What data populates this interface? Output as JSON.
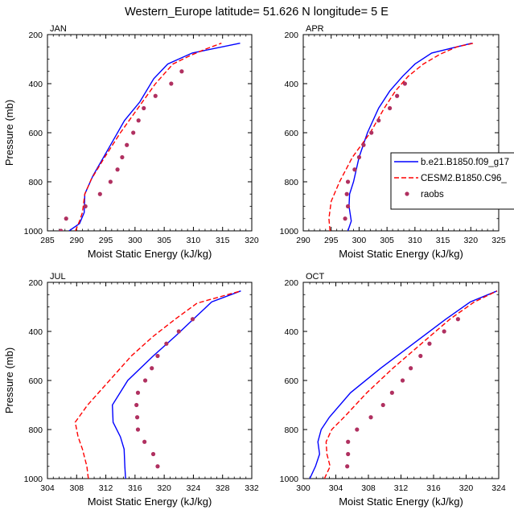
{
  "title": "Western_Europe  latitude= 51.626 N longitude= 5 E",
  "legend": {
    "position": "right, between top panels",
    "entries": [
      {
        "label": "b.e21.B1850.f09_g17",
        "color": "#0000ff",
        "style": "solid"
      },
      {
        "label": "CESM2.B1850.C96_",
        "color": "#ff0000",
        "style": "dashed"
      },
      {
        "label": "raobs",
        "color": "#b03060",
        "style": "dots"
      }
    ]
  },
  "chart_data": [
    {
      "type": "line",
      "title": "JAN",
      "xlabel": "Moist Static Energy (kJ/kg)",
      "ylabel": "Pressure (mb)",
      "xlim": [
        285,
        320
      ],
      "ylim": [
        1000,
        200
      ],
      "y_reversed": true,
      "xticks": [
        285,
        290,
        295,
        300,
        305,
        310,
        315,
        320
      ],
      "yticks": [
        200,
        400,
        600,
        800,
        1000
      ],
      "series": [
        {
          "name": "b.e21.B1850.f09_g17",
          "style": "solid",
          "color": "#0000ff",
          "points": [
            [
              288.7,
              1000
            ],
            [
              290.5,
              970
            ],
            [
              291.3,
              925
            ],
            [
              291.4,
              850
            ],
            [
              292.8,
              775
            ],
            [
              295.8,
              650
            ],
            [
              298.2,
              550
            ],
            [
              300.8,
              475
            ],
            [
              303.2,
              380
            ],
            [
              305.6,
              320
            ],
            [
              309.8,
              275
            ],
            [
              318.0,
              235
            ]
          ]
        },
        {
          "name": "CESM2.B1850.C96_",
          "style": "dashed",
          "color": "#ff0000",
          "points": [
            [
              289.8,
              1000
            ],
            [
              290.5,
              960
            ],
            [
              291.0,
              925
            ],
            [
              291.4,
              850
            ],
            [
              292.5,
              790
            ],
            [
              294.8,
              700
            ],
            [
              297.5,
              600
            ],
            [
              300.5,
              500
            ],
            [
              303.5,
              400
            ],
            [
              306.5,
              320
            ],
            [
              309.5,
              285
            ],
            [
              312.0,
              260
            ],
            [
              314.8,
              235
            ]
          ]
        },
        {
          "name": "raobs",
          "style": "dots",
          "color": "#b03060",
          "points": [
            [
              287.3,
              1000
            ],
            [
              288.2,
              950
            ],
            [
              291.5,
              900
            ],
            [
              294.0,
              850
            ],
            [
              295.8,
              800
            ],
            [
              297.0,
              750
            ],
            [
              297.8,
              700
            ],
            [
              298.6,
              650
            ],
            [
              299.7,
              600
            ],
            [
              300.6,
              550
            ],
            [
              301.5,
              500
            ],
            [
              303.5,
              450
            ],
            [
              306.2,
              400
            ],
            [
              308.0,
              350
            ]
          ]
        }
      ]
    },
    {
      "type": "line",
      "title": "APR",
      "xlabel": "Moist Static Energy (kJ/kg)",
      "ylabel": "Pressure (mb)",
      "xlim": [
        290,
        325
      ],
      "ylim": [
        1000,
        200
      ],
      "y_reversed": true,
      "xticks": [
        290,
        295,
        300,
        305,
        310,
        315,
        320,
        325
      ],
      "yticks": [
        200,
        400,
        600,
        800,
        1000
      ],
      "series": [
        {
          "name": "b.e21.B1850.f09_g17",
          "style": "solid",
          "color": "#0000ff",
          "points": [
            [
              298.0,
              1000
            ],
            [
              298.6,
              960
            ],
            [
              298.2,
              900
            ],
            [
              298.3,
              850
            ],
            [
              299.0,
              800
            ],
            [
              300.0,
              700
            ],
            [
              301.5,
              600
            ],
            [
              303.5,
              500
            ],
            [
              305.5,
              430
            ],
            [
              307.8,
              370
            ],
            [
              310.0,
              320
            ],
            [
              313.0,
              275
            ],
            [
              320.2,
              235
            ]
          ]
        },
        {
          "name": "CESM2.B1850.C96_",
          "style": "dashed",
          "color": "#ff0000",
          "points": [
            [
              294.8,
              1000
            ],
            [
              294.6,
              950
            ],
            [
              295.0,
              880
            ],
            [
              296.5,
              800
            ],
            [
              298.8,
              700
            ],
            [
              302.0,
              600
            ],
            [
              304.5,
              500
            ],
            [
              306.5,
              430
            ],
            [
              308.8,
              370
            ],
            [
              311.5,
              320
            ],
            [
              314.5,
              280
            ],
            [
              317.5,
              250
            ],
            [
              320.5,
              235
            ]
          ]
        },
        {
          "name": "raobs",
          "style": "dots",
          "color": "#b03060",
          "points": [
            [
              297.5,
              950
            ],
            [
              298.0,
              900
            ],
            [
              297.8,
              850
            ],
            [
              298.0,
              800
            ],
            [
              299.2,
              750
            ],
            [
              300.0,
              700
            ],
            [
              300.8,
              650
            ],
            [
              302.2,
              600
            ],
            [
              303.5,
              550
            ],
            [
              305.5,
              500
            ],
            [
              306.8,
              450
            ],
            [
              308.2,
              400
            ]
          ]
        }
      ]
    },
    {
      "type": "line",
      "title": "JUL",
      "xlabel": "Moist Static Energy (kJ/kg)",
      "ylabel": "Pressure (mb)",
      "xlim": [
        304,
        332
      ],
      "ylim": [
        1000,
        200
      ],
      "y_reversed": true,
      "xticks": [
        304,
        308,
        312,
        316,
        320,
        324,
        328,
        332
      ],
      "yticks": [
        200,
        400,
        600,
        800,
        1000
      ],
      "series": [
        {
          "name": "b.e21.B1850.f09_g17",
          "style": "solid",
          "color": "#0000ff",
          "points": [
            [
              314.7,
              1000
            ],
            [
              314.6,
              950
            ],
            [
              314.5,
              880
            ],
            [
              314.0,
              830
            ],
            [
              313.0,
              770
            ],
            [
              312.9,
              700
            ],
            [
              315.0,
              600
            ],
            [
              318.5,
              500
            ],
            [
              321.5,
              420
            ],
            [
              324.0,
              350
            ],
            [
              326.5,
              280
            ],
            [
              330.5,
              235
            ]
          ]
        },
        {
          "name": "CESM2.B1850.C96_",
          "style": "dashed",
          "color": "#ff0000",
          "points": [
            [
              309.6,
              1000
            ],
            [
              309.4,
              950
            ],
            [
              308.8,
              880
            ],
            [
              308.2,
              830
            ],
            [
              307.8,
              770
            ],
            [
              309.5,
              700
            ],
            [
              312.5,
              600
            ],
            [
              315.5,
              500
            ],
            [
              318.5,
              420
            ],
            [
              321.5,
              350
            ],
            [
              324.5,
              285
            ],
            [
              327.5,
              260
            ],
            [
              330.5,
              235
            ]
          ]
        },
        {
          "name": "raobs",
          "style": "dots",
          "color": "#b03060",
          "points": [
            [
              319.1,
              950
            ],
            [
              318.5,
              900
            ],
            [
              317.3,
              850
            ],
            [
              316.4,
              800
            ],
            [
              316.3,
              750
            ],
            [
              316.2,
              700
            ],
            [
              316.4,
              650
            ],
            [
              317.4,
              600
            ],
            [
              318.3,
              550
            ],
            [
              319.1,
              500
            ],
            [
              320.3,
              450
            ],
            [
              322.0,
              400
            ],
            [
              323.9,
              350
            ]
          ]
        }
      ]
    },
    {
      "type": "line",
      "title": "OCT",
      "xlabel": "Moist Static Energy (kJ/kg)",
      "ylabel": "Pressure (mb)",
      "xlim": [
        300,
        324
      ],
      "ylim": [
        1000,
        200
      ],
      "y_reversed": true,
      "xticks": [
        300,
        304,
        308,
        312,
        316,
        320,
        324
      ],
      "yticks": [
        200,
        400,
        600,
        800,
        1000
      ],
      "series": [
        {
          "name": "b.e21.B1850.f09_g17",
          "style": "solid",
          "color": "#0000ff",
          "points": [
            [
              300.8,
              1000
            ],
            [
              301.5,
              950
            ],
            [
              302.0,
              900
            ],
            [
              301.8,
              850
            ],
            [
              302.2,
              800
            ],
            [
              303.2,
              750
            ],
            [
              305.8,
              650
            ],
            [
              309.5,
              550
            ],
            [
              313.5,
              450
            ],
            [
              317.5,
              350
            ],
            [
              320.5,
              280
            ],
            [
              323.8,
              235
            ]
          ]
        },
        {
          "name": "CESM2.B1850.C96_",
          "style": "dashed",
          "color": "#ff0000",
          "points": [
            [
              302.6,
              1000
            ],
            [
              303.3,
              950
            ],
            [
              302.9,
              900
            ],
            [
              302.8,
              850
            ],
            [
              303.5,
              800
            ],
            [
              305.0,
              750
            ],
            [
              307.8,
              650
            ],
            [
              311.0,
              550
            ],
            [
              314.5,
              450
            ],
            [
              318.0,
              350
            ],
            [
              321.0,
              280
            ],
            [
              323.8,
              235
            ]
          ]
        },
        {
          "name": "raobs",
          "style": "dots",
          "color": "#b03060",
          "points": [
            [
              305.4,
              950
            ],
            [
              305.5,
              900
            ],
            [
              305.5,
              850
            ],
            [
              306.6,
              800
            ],
            [
              308.3,
              750
            ],
            [
              309.8,
              700
            ],
            [
              310.9,
              650
            ],
            [
              312.2,
              600
            ],
            [
              313.2,
              550
            ],
            [
              314.4,
              500
            ],
            [
              315.5,
              450
            ],
            [
              317.3,
              400
            ],
            [
              319.0,
              350
            ]
          ]
        }
      ]
    }
  ]
}
